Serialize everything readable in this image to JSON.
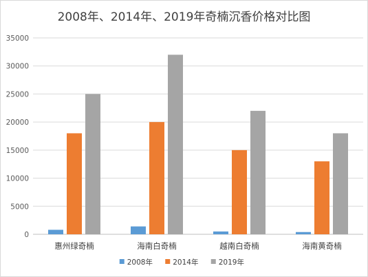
{
  "chart_data": {
    "type": "bar",
    "title": "2008年、2014年、2019年奇楠沉香价格对比图",
    "categories": [
      "惠州绿奇楠",
      "海南白奇楠",
      "越南白奇楠",
      "海南黄奇楠"
    ],
    "series": [
      {
        "name": "2008年",
        "color": "#5B9BD5",
        "values": [
          800,
          1400,
          500,
          400
        ]
      },
      {
        "name": "2014年",
        "color": "#ED7D31",
        "values": [
          18000,
          20000,
          15000,
          13000
        ]
      },
      {
        "name": "2019年",
        "color": "#A5A5A5",
        "values": [
          25000,
          32000,
          22000,
          18000
        ]
      }
    ],
    "ylim": [
      0,
      35000
    ],
    "yticks": [
      "0",
      "5000",
      "10000",
      "15000",
      "20000",
      "25000",
      "30000",
      "35000"
    ],
    "xlabel": "",
    "ylabel": "",
    "grid": true,
    "legend": "bottom"
  }
}
